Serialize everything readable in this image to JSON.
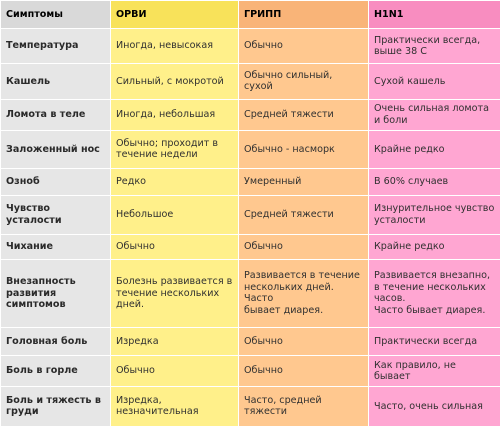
{
  "colors": {
    "symptom_col": "#e6e6e6",
    "orvi_col": "#fff08a",
    "gripp_col": "#ffc88f",
    "h1n1_col": "#ffa6d2"
  },
  "table": {
    "headers": [
      "Симптомы",
      "ОРВИ",
      "ГРИПП",
      "H1N1"
    ],
    "rows": [
      [
        "Температура",
        "Иногда, невысокая",
        "Обычно",
        "Практически всегда,\nвыше 38 С"
      ],
      [
        "Кашель",
        "Сильный, с мокротой",
        "Обычно сильный, сухой",
        "Сухой кашель"
      ],
      [
        "Ломота в теле",
        "Иногда, небольшая",
        "Средней тяжести",
        "Очень сильная ломота\nи боли"
      ],
      [
        "Заложенный нос",
        "Обычно; проходит в\nтечение недели",
        "Обычно - насморк",
        "Крайне редко"
      ],
      [
        "Озноб",
        "Редко",
        "Умеренный",
        "В 60% случаев"
      ],
      [
        "Чувство\nусталости",
        "Небольшое",
        "Средней тяжести",
        "Изнурительное чувство\nусталости"
      ],
      [
        "Чихание",
        "Обычно",
        "Обычно",
        "Крайне редко"
      ],
      [
        "Внезапность\nразвития\nсимптомов",
        "Болезнь развивается в\nтечение нескольких\nдней.",
        "Развивается в течение\nнескольких дней. Часто\nбывает диарея.",
        "Развивается внезапно,\nв течение нескольких\nчасов.\nЧасто бывает диарея."
      ],
      [
        "Головная боль",
        "Изредка",
        "Обычно",
        "Практически всегда"
      ],
      [
        "Боль в горле",
        "Обычно",
        "Обычно",
        "Как правило, не бывает"
      ],
      [
        "Боль и тяжесть в\nгруди",
        "Изредка,\nнезначительная",
        "Часто, средней тяжести",
        "Часто, очень сильная"
      ]
    ]
  }
}
